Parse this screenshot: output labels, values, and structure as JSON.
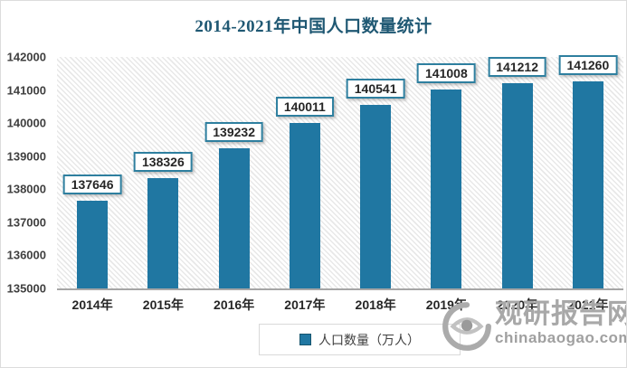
{
  "chart_data": {
    "type": "bar",
    "title": "2014-2021年中国人口数量统计",
    "categories": [
      "2014年",
      "2015年",
      "2016年",
      "2017年",
      "2018年",
      "2019年",
      "2020年",
      "2021年"
    ],
    "values": [
      137646,
      138326,
      139232,
      140011,
      140541,
      141008,
      141212,
      141260
    ],
    "xlabel": "",
    "ylabel": "",
    "ylim": [
      135000,
      142000
    ],
    "ytick_step": 1000,
    "ytick_labels": [
      "142000",
      "141000",
      "140000",
      "139000",
      "138000",
      "137000",
      "136000",
      "135000"
    ],
    "legend_entries": [
      "人口数量（万人）"
    ],
    "legend_position": "bottom-center",
    "grid": false,
    "plot_background": "diagonal-hatch",
    "bar_value_labels_shown": true
  },
  "legend": {
    "label": "人口数量（万人）",
    "marker": "square"
  },
  "watermark": {
    "logo_icon": "eye-swirl",
    "site_name": "观研报告网",
    "domain": "chinabaogao.com"
  },
  "colors": {
    "title": "#1F5873",
    "bar": "#2077A2",
    "value_label_border": "#2E7F9F",
    "value_label_text": "#262626",
    "axis_text": "#3F3F3F",
    "axis_line": "#A6A6A6",
    "hatch_stripe": "#E8E8E8",
    "legend_border": "#D9D9D9",
    "watermark_gray": "#A6A6A6"
  }
}
